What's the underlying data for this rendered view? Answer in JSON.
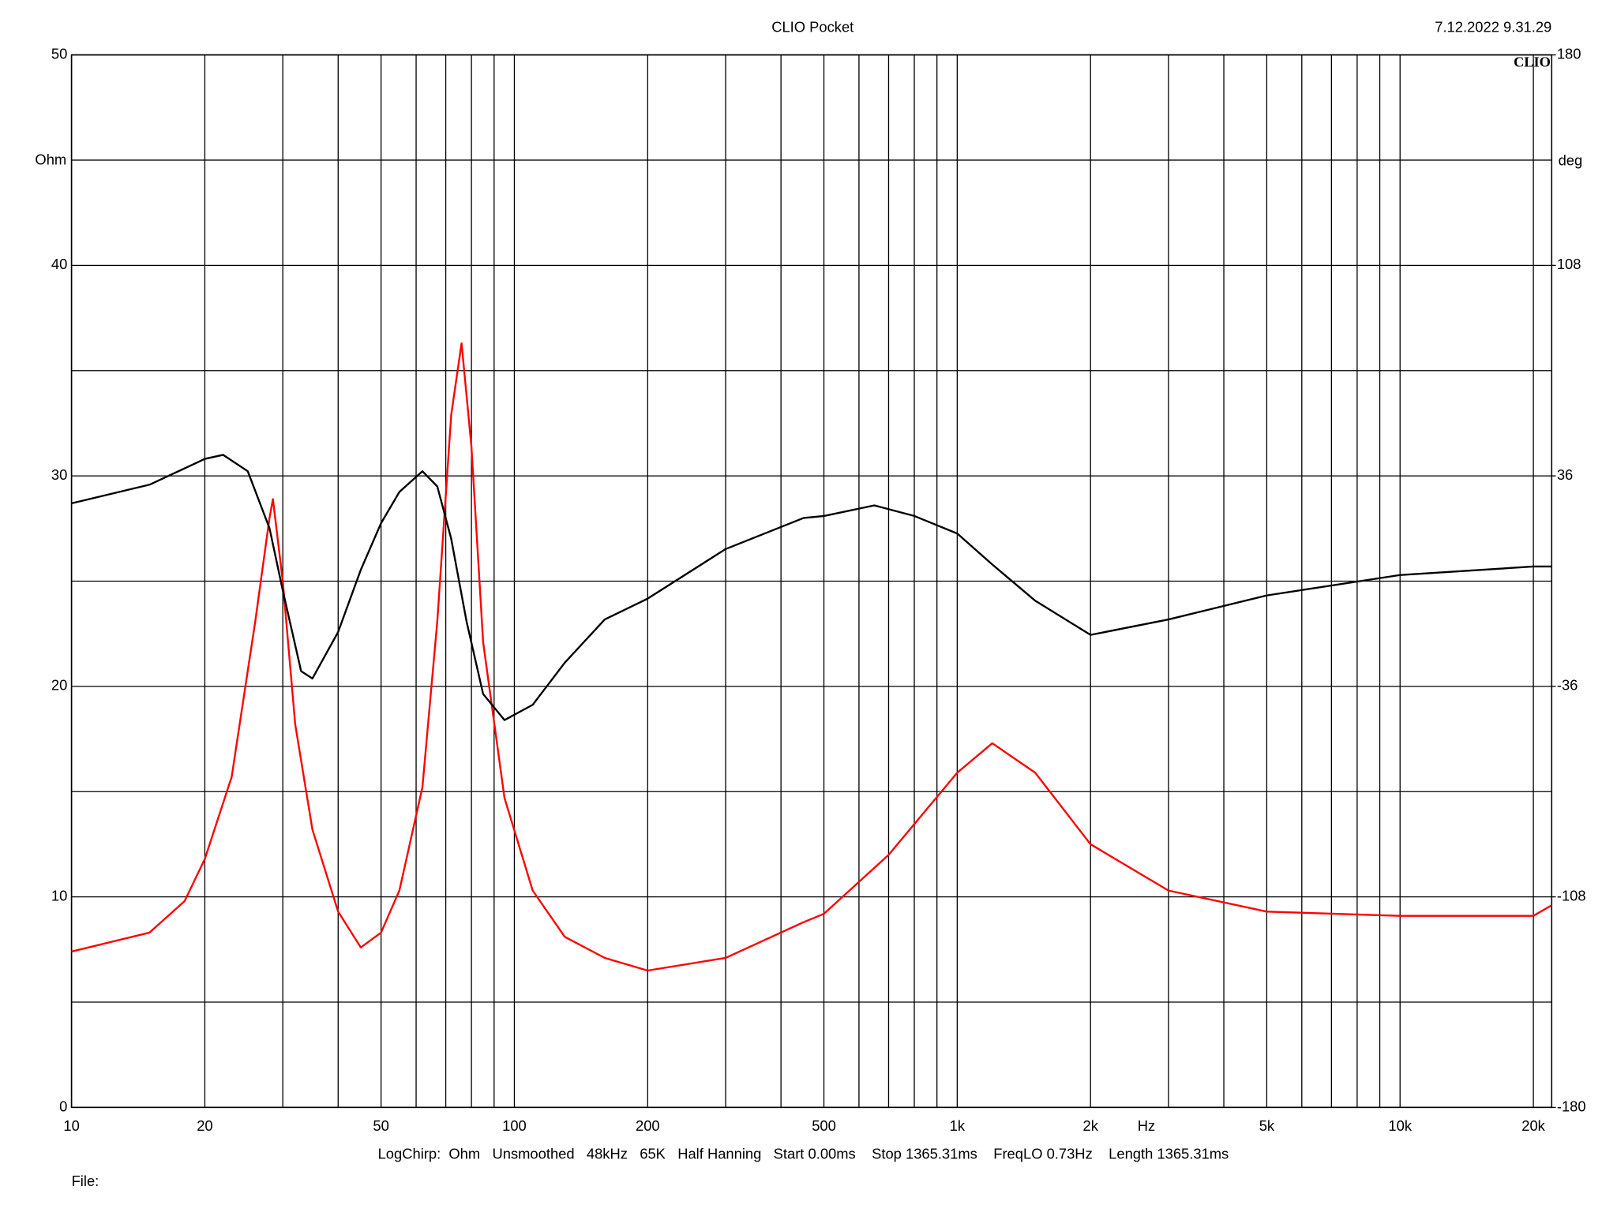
{
  "chart_data": {
    "type": "line",
    "title": "CLIO Pocket",
    "timestamp": "7.12.2022 9.31.29",
    "logo": "CLIO",
    "ylabel": "Ohm",
    "y2label": "deg",
    "xlabel": "Hz",
    "info": "LogChirp:  Ohm   Unsmoothed   48kHz   65K   Half Hanning   Start 0.00ms    Stop 1365.31ms    FreqLO 0.73Hz    Length 1365.31ms",
    "file": "File:",
    "xscale": "log",
    "xlim": [
      10,
      22000
    ],
    "xticks": [
      10,
      20,
      50,
      100,
      200,
      500,
      {
        "value": 1000,
        "label": "1k"
      },
      {
        "value": 2000,
        "label": "2k"
      },
      {
        "value": 5000,
        "label": "5k"
      },
      {
        "value": 10000,
        "label": "10k"
      },
      {
        "value": 20000,
        "label": "20k"
      }
    ],
    "xgrid": [
      30,
      40,
      60,
      70,
      80,
      90,
      300,
      400,
      600,
      700,
      800,
      900,
      3000,
      4000,
      6000,
      7000,
      8000,
      9000
    ],
    "ylim": [
      0,
      50
    ],
    "yticks": [
      0,
      10,
      20,
      30,
      40,
      50
    ],
    "ygrid": [
      5,
      15,
      25,
      35,
      45
    ],
    "y2lim": [
      -180,
      180
    ],
    "y2ticks": [
      -180,
      -108,
      -36,
      36,
      108,
      180
    ],
    "grid": true,
    "series": [
      {
        "color": "#ff0000",
        "x": [
          10,
          15,
          18,
          20,
          23,
          26,
          28,
          28.5,
          30,
          32,
          35,
          40,
          45,
          50,
          55,
          62,
          67,
          72,
          76,
          80,
          85,
          95,
          110,
          130,
          160,
          200,
          300,
          450,
          500,
          700,
          1000,
          1200,
          1500,
          2000,
          3000,
          5000,
          10000,
          20000,
          22000
        ],
        "values": [
          7.4,
          8.3,
          9.8,
          11.8,
          15.7,
          23.1,
          28.0,
          28.9,
          25.0,
          18.2,
          13.2,
          9.3,
          7.6,
          8.3,
          10.3,
          15.2,
          23.1,
          32.9,
          36.3,
          31.4,
          22.1,
          14.7,
          10.3,
          8.1,
          7.1,
          6.5,
          7.1,
          8.8,
          9.2,
          12.0,
          15.9,
          17.3,
          15.9,
          12.5,
          10.3,
          9.3,
          9.1,
          9.1,
          9.6
        ]
      },
      {
        "color": "#000000",
        "axis": "y2",
        "x": [
          10,
          15,
          20,
          22,
          25,
          28,
          30,
          33,
          35,
          40,
          45,
          50,
          55,
          62,
          67,
          72,
          78,
          85,
          95,
          110,
          130,
          160,
          200,
          300,
          450,
          500,
          650,
          800,
          1000,
          1200,
          1500,
          2000,
          3000,
          5000,
          10000,
          20000,
          22000
        ],
        "values": [
          26.6,
          33.0,
          41.8,
          43.2,
          37.6,
          18.1,
          -3.2,
          -30.8,
          -33.3,
          -17.4,
          3.9,
          19.8,
          30.5,
          37.6,
          32.4,
          14.5,
          -13.8,
          -38.6,
          -47.5,
          -42.3,
          -27.9,
          -13.1,
          -6.0,
          11.0,
          21.6,
          22.3,
          25.9,
          22.3,
          16.3,
          5.7,
          -6.7,
          -18.4,
          -13.1,
          -4.9,
          2.1,
          5.0,
          5.0
        ]
      }
    ]
  }
}
